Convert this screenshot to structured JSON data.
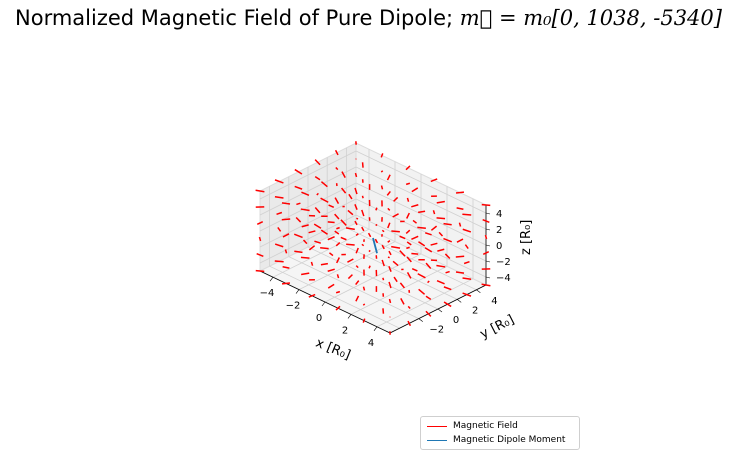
{
  "chart_data": {
    "type": "quiver3d",
    "title_prefix": "Normalized Magnetic Field of Pure Dipole; ",
    "title_math": "m⃗ = m₀[0, 1038, -5340]",
    "moment": [
      0,
      1038,
      -5340
    ],
    "xlabel": "x [R₀]",
    "ylabel": "y [R₀]",
    "zlabel": "z [R₀]",
    "xlim": [
      -5,
      5
    ],
    "ylim": [
      -5,
      5
    ],
    "zlim": [
      -5,
      5
    ],
    "xticks": [
      "−4",
      "−2",
      "0",
      "2",
      "4"
    ],
    "yticks": [
      "−2",
      "0",
      "2",
      "4"
    ],
    "zticks": [
      "−4",
      "−2",
      "0",
      "2",
      "4"
    ],
    "grid": true,
    "field_grid": [
      -5,
      -3,
      -1,
      1,
      3,
      5
    ],
    "series": [
      {
        "name": "Magnetic Field",
        "color": "#ff0000"
      },
      {
        "name": "Magnetic Dipole Moment",
        "color": "#1f77b4"
      }
    ],
    "legend_position": "lower-right"
  }
}
